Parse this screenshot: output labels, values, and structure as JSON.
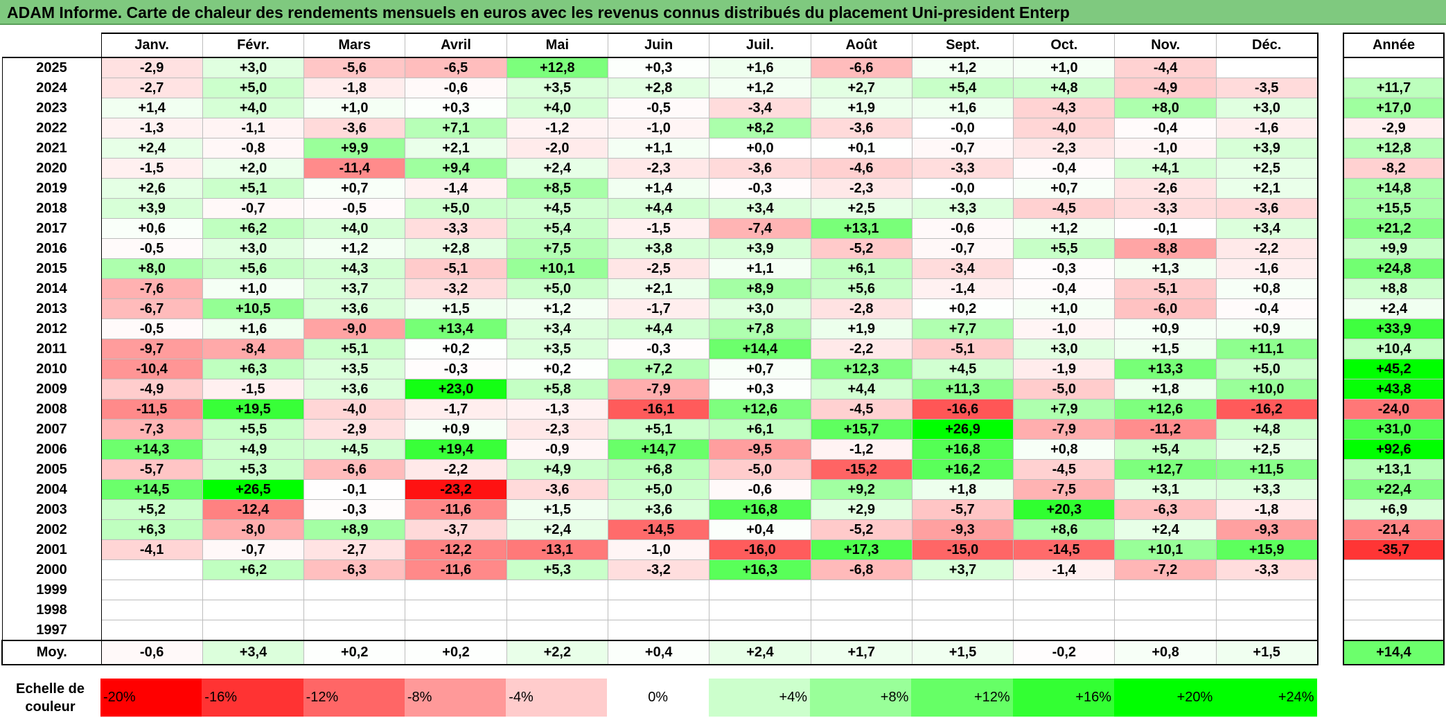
{
  "title": "ADAM Informe. Carte de chaleur des rendements mensuels en euros avec les revenus connus distribués du placement Uni-president Enterp",
  "chart_data": {
    "type": "heatmap",
    "months": [
      "Janv.",
      "Févr.",
      "Mars",
      "Avril",
      "Mai",
      "Juin",
      "Juil.",
      "Août",
      "Sept.",
      "Oct.",
      "Nov.",
      "Déc."
    ],
    "year_header": "Année",
    "rows": [
      {
        "year": "2025",
        "values": [
          "-2,9",
          "+3,0",
          "-5,6",
          "-6,5",
          "+12,8",
          "+0,3",
          "+1,6",
          "-6,6",
          "+1,2",
          "+1,0",
          "-4,4",
          ""
        ],
        "annual": ""
      },
      {
        "year": "2024",
        "values": [
          "-2,7",
          "+5,0",
          "-1,8",
          "-0,6",
          "+3,5",
          "+2,8",
          "+1,2",
          "+2,7",
          "+5,4",
          "+4,8",
          "-4,9",
          "-3,5"
        ],
        "annual": "+11,7"
      },
      {
        "year": "2023",
        "values": [
          "+1,4",
          "+4,0",
          "+1,0",
          "+0,3",
          "+4,0",
          "-0,5",
          "-3,4",
          "+1,9",
          "+1,6",
          "-4,3",
          "+8,0",
          "+3,0"
        ],
        "annual": "+17,0"
      },
      {
        "year": "2022",
        "values": [
          "-1,3",
          "-1,1",
          "-3,6",
          "+7,1",
          "-1,2",
          "-1,0",
          "+8,2",
          "-3,6",
          "-0,0",
          "-4,0",
          "-0,4",
          "-1,6"
        ],
        "annual": "-2,9"
      },
      {
        "year": "2021",
        "values": [
          "+2,4",
          "-0,8",
          "+9,9",
          "+2,1",
          "-2,0",
          "+1,1",
          "+0,0",
          "+0,1",
          "-0,7",
          "-2,3",
          "-1,0",
          "+3,9"
        ],
        "annual": "+12,8"
      },
      {
        "year": "2020",
        "values": [
          "-1,5",
          "+2,0",
          "-11,4",
          "+9,4",
          "+2,4",
          "-2,3",
          "-3,6",
          "-4,6",
          "-3,3",
          "-0,4",
          "+4,1",
          "+2,5"
        ],
        "annual": "-8,2"
      },
      {
        "year": "2019",
        "values": [
          "+2,6",
          "+5,1",
          "+0,7",
          "-1,4",
          "+8,5",
          "+1,4",
          "-0,3",
          "-2,3",
          "-0,0",
          "+0,7",
          "-2,6",
          "+2,1"
        ],
        "annual": "+14,8"
      },
      {
        "year": "2018",
        "values": [
          "+3,9",
          "-0,7",
          "-0,5",
          "+5,0",
          "+4,5",
          "+4,4",
          "+3,4",
          "+2,5",
          "+3,3",
          "-4,5",
          "-3,3",
          "-3,6"
        ],
        "annual": "+15,5"
      },
      {
        "year": "2017",
        "values": [
          "+0,6",
          "+6,2",
          "+4,0",
          "-3,3",
          "+5,4",
          "-1,5",
          "-7,4",
          "+13,1",
          "-0,6",
          "+1,2",
          "-0,1",
          "+3,4"
        ],
        "annual": "+21,2"
      },
      {
        "year": "2016",
        "values": [
          "-0,5",
          "+3,0",
          "+1,2",
          "+2,8",
          "+7,5",
          "+3,8",
          "+3,9",
          "-5,2",
          "-0,7",
          "+5,5",
          "-8,8",
          "-2,2"
        ],
        "annual": "+9,9"
      },
      {
        "year": "2015",
        "values": [
          "+8,0",
          "+5,6",
          "+4,3",
          "-5,1",
          "+10,1",
          "-2,5",
          "+1,1",
          "+6,1",
          "-3,4",
          "-0,3",
          "+1,3",
          "-1,6"
        ],
        "annual": "+24,8"
      },
      {
        "year": "2014",
        "values": [
          "-7,6",
          "+1,0",
          "+3,7",
          "-3,2",
          "+5,0",
          "+2,1",
          "+8,9",
          "+5,6",
          "-1,4",
          "-0,4",
          "-5,1",
          "+0,8"
        ],
        "annual": "+8,8"
      },
      {
        "year": "2013",
        "values": [
          "-6,7",
          "+10,5",
          "+3,6",
          "+1,5",
          "+1,2",
          "-1,7",
          "+3,0",
          "-2,8",
          "+0,2",
          "+1,0",
          "-6,0",
          "-0,4"
        ],
        "annual": "+2,4"
      },
      {
        "year": "2012",
        "values": [
          "-0,5",
          "+1,6",
          "-9,0",
          "+13,4",
          "+3,4",
          "+4,4",
          "+7,8",
          "+1,9",
          "+7,7",
          "-1,0",
          "+0,9",
          "+0,9"
        ],
        "annual": "+33,9"
      },
      {
        "year": "2011",
        "values": [
          "-9,7",
          "-8,4",
          "+5,1",
          "+0,2",
          "+3,5",
          "-0,3",
          "+14,4",
          "-2,2",
          "-5,1",
          "+3,0",
          "+1,5",
          "+11,1"
        ],
        "annual": "+10,4"
      },
      {
        "year": "2010",
        "values": [
          "-10,4",
          "+6,3",
          "+3,5",
          "-0,3",
          "+0,2",
          "+7,2",
          "+0,7",
          "+12,3",
          "+4,5",
          "-1,9",
          "+13,3",
          "+5,0"
        ],
        "annual": "+45,2"
      },
      {
        "year": "2009",
        "values": [
          "-4,9",
          "-1,5",
          "+3,6",
          "+23,0",
          "+5,8",
          "-7,9",
          "+0,3",
          "+4,4",
          "+11,3",
          "-5,0",
          "+1,8",
          "+10,0"
        ],
        "annual": "+43,8"
      },
      {
        "year": "2008",
        "values": [
          "-11,5",
          "+19,5",
          "-4,0",
          "-1,7",
          "-1,3",
          "-16,1",
          "+12,6",
          "-4,5",
          "-16,6",
          "+7,9",
          "+12,6",
          "-16,2"
        ],
        "annual": "-24,0"
      },
      {
        "year": "2007",
        "values": [
          "-7,3",
          "+5,5",
          "-2,9",
          "+0,9",
          "-2,3",
          "+5,1",
          "+6,1",
          "+15,7",
          "+26,9",
          "-7,9",
          "-11,2",
          "+4,8"
        ],
        "annual": "+31,0"
      },
      {
        "year": "2006",
        "values": [
          "+14,3",
          "+4,9",
          "+4,5",
          "+19,4",
          "-0,9",
          "+14,7",
          "-9,5",
          "-1,2",
          "+16,8",
          "+0,8",
          "+5,4",
          "+2,5"
        ],
        "annual": "+92,6"
      },
      {
        "year": "2005",
        "values": [
          "-5,7",
          "+5,3",
          "-6,6",
          "-2,2",
          "+4,9",
          "+6,8",
          "-5,0",
          "-15,2",
          "+16,2",
          "-4,5",
          "+12,7",
          "+11,5"
        ],
        "annual": "+13,1"
      },
      {
        "year": "2004",
        "values": [
          "+14,5",
          "+26,5",
          "-0,1",
          "-23,2",
          "-3,6",
          "+5,0",
          "-0,6",
          "+9,2",
          "+1,8",
          "-7,5",
          "+3,1",
          "+3,3"
        ],
        "annual": "+22,4"
      },
      {
        "year": "2003",
        "values": [
          "+5,2",
          "-12,4",
          "-0,3",
          "-11,6",
          "+1,5",
          "+3,6",
          "+16,8",
          "+2,9",
          "-5,7",
          "+20,3",
          "-6,3",
          "-1,8"
        ],
        "annual": "+6,9"
      },
      {
        "year": "2002",
        "values": [
          "+6,3",
          "-8,0",
          "+8,9",
          "-3,7",
          "+2,4",
          "-14,5",
          "+0,4",
          "-5,2",
          "-9,3",
          "+8,6",
          "+2,4",
          "-9,3"
        ],
        "annual": "-21,4"
      },
      {
        "year": "2001",
        "values": [
          "-4,1",
          "-0,7",
          "-2,7",
          "-12,2",
          "-13,1",
          "-1,0",
          "-16,0",
          "+17,3",
          "-15,0",
          "-14,5",
          "+10,1",
          "+15,9"
        ],
        "annual": "-35,7"
      },
      {
        "year": "2000",
        "values": [
          "",
          "+6,2",
          "-6,3",
          "-11,6",
          "+5,3",
          "-3,2",
          "+16,3",
          "-6,8",
          "+3,7",
          "-1,4",
          "-7,2",
          "-3,3"
        ],
        "annual": ""
      },
      {
        "year": "1999",
        "values": [
          "",
          "",
          "",
          "",
          "",
          "",
          "",
          "",
          "",
          "",
          "",
          ""
        ],
        "annual": ""
      },
      {
        "year": "1998",
        "values": [
          "",
          "",
          "",
          "",
          "",
          "",
          "",
          "",
          "",
          "",
          "",
          ""
        ],
        "annual": ""
      },
      {
        "year": "1997",
        "values": [
          "",
          "",
          "",
          "",
          "",
          "",
          "",
          "",
          "",
          "",
          "",
          ""
        ],
        "annual": ""
      }
    ],
    "average": {
      "label": "Moy.",
      "values": [
        "-0,6",
        "+3,4",
        "+0,2",
        "+0,2",
        "+2,2",
        "+0,4",
        "+2,4",
        "+1,7",
        "+1,5",
        "-0,2",
        "+0,8",
        "+1,5"
      ],
      "annual": "+14,4"
    },
    "scale": {
      "label": "Echelle de couleur",
      "steps": [
        {
          "text": "-20%",
          "color": "#ff0000"
        },
        {
          "text": "-16%",
          "color": "#ff3333"
        },
        {
          "text": "-12%",
          "color": "#ff6666"
        },
        {
          "text": "-8%",
          "color": "#ff9999"
        },
        {
          "text": "-4%",
          "color": "#ffcccc"
        },
        {
          "text": "0%",
          "color": "#ffffff"
        },
        {
          "text": "+4%",
          "color": "#ccffcc"
        },
        {
          "text": "+8%",
          "color": "#99ff99"
        },
        {
          "text": "+12%",
          "color": "#66ff66"
        },
        {
          "text": "+16%",
          "color": "#33ff33"
        },
        {
          "text": "+20%",
          "color": "#00ff00"
        },
        {
          "text": "+24%",
          "color": "#00ff00"
        }
      ]
    }
  }
}
